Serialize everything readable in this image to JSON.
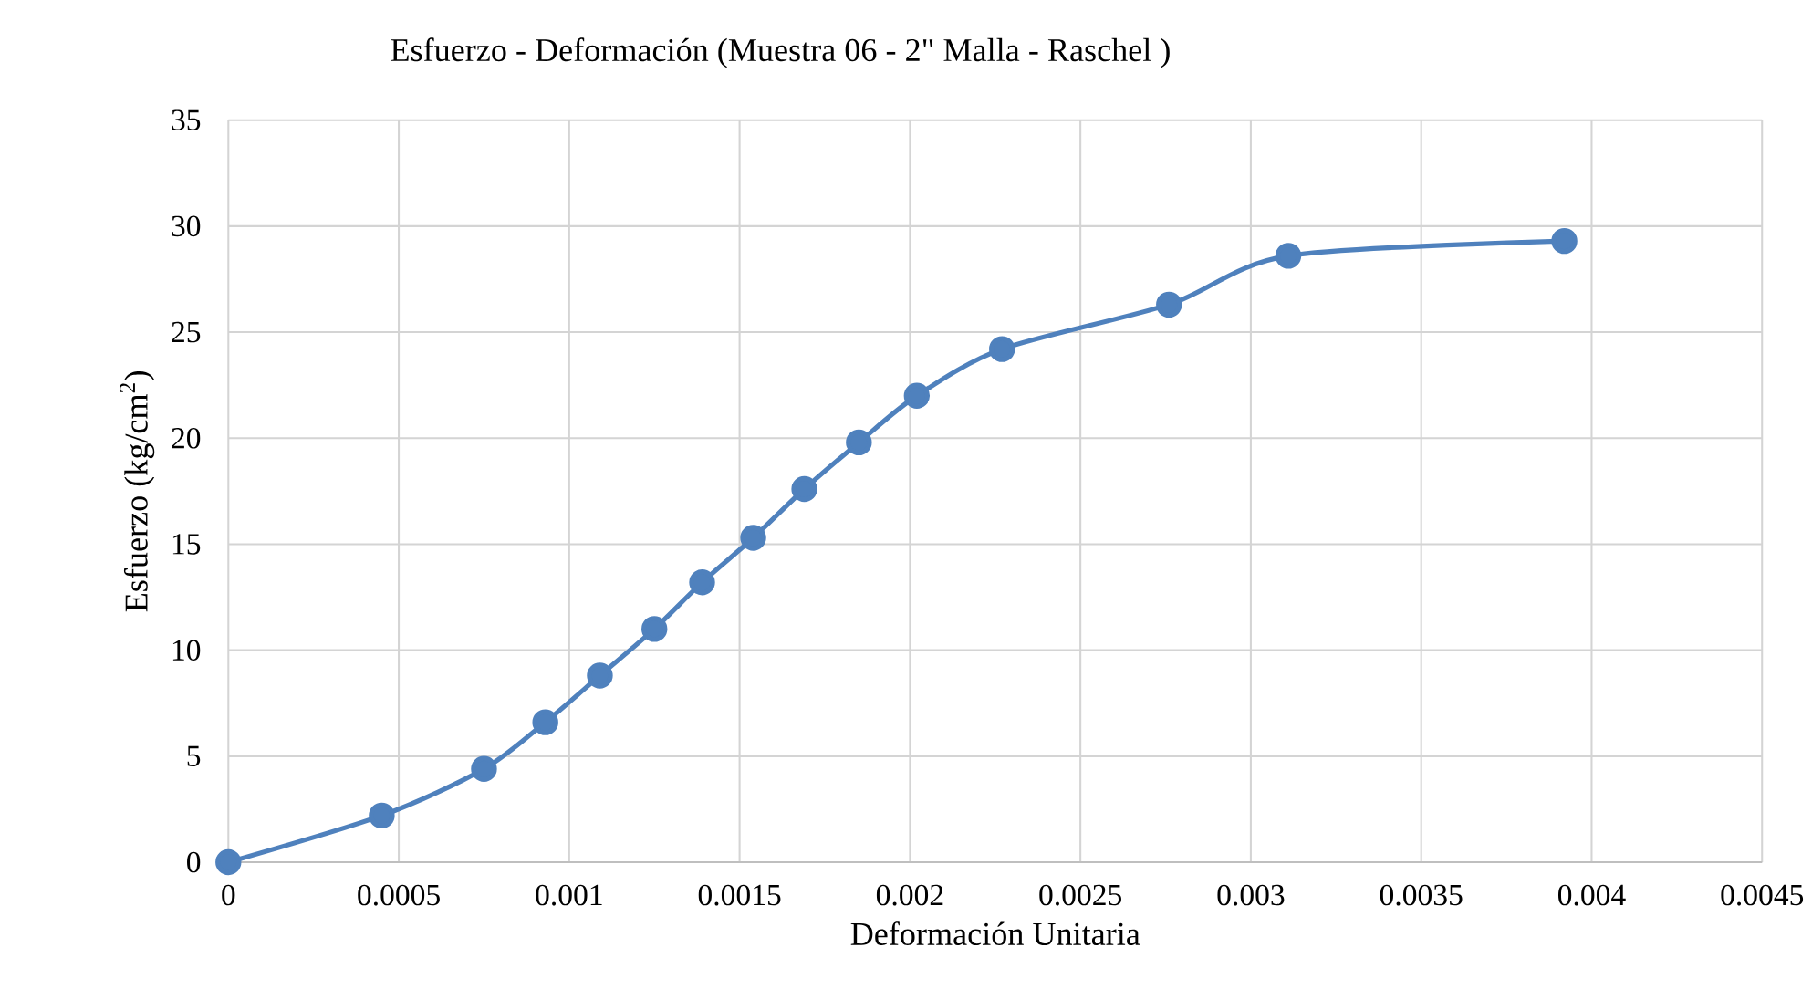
{
  "chart_data": {
    "type": "line",
    "title": "Esfuerzo - Deformación (Muestra 06 - 2\" Malla - Raschel )",
    "xlabel": "Deformación Unitaria",
    "ylabel": "Esfuerzo (kg/cm$^{2}$)",
    "series": [
      {
        "color": "#4f81bd",
        "x": [
          0,
          0.00045,
          0.00075,
          0.00093,
          0.00109,
          0.00125,
          0.00139,
          0.00154,
          0.00169,
          0.00185,
          0.00202,
          0.00227,
          0.00276,
          0.00311,
          0.00392
        ],
        "values": [
          0,
          2.2,
          4.4,
          6.6,
          8.8,
          11.0,
          13.2,
          15.3,
          17.6,
          19.8,
          22.0,
          24.2,
          26.3,
          28.6,
          29.3
        ]
      }
    ],
    "xlim": [
      0,
      0.0045
    ],
    "xticks": [
      0,
      0.0005,
      0.001,
      0.0015,
      0.002,
      0.0025,
      0.003,
      0.0035,
      0.004,
      0.0045
    ],
    "ylim": [
      0,
      35
    ],
    "yticks": [
      0,
      5,
      10,
      15,
      20,
      25,
      30,
      35
    ],
    "grid": true,
    "marker": "circle",
    "line_style": "solid"
  }
}
